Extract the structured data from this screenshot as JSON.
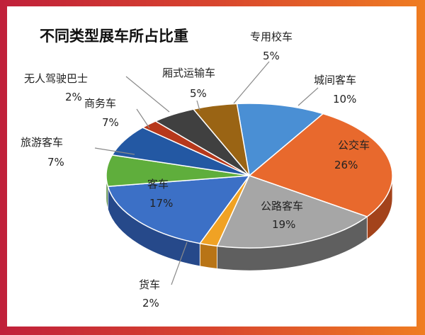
{
  "chart_data": {
    "type": "pie",
    "title": "不同类型展车所占比重",
    "slices": [
      {
        "name": "城间客车",
        "value": 10,
        "percent": "10%",
        "color": "#4a8fd4",
        "side": "#2f6aa6"
      },
      {
        "name": "公交车",
        "value": 26,
        "percent": "26%",
        "color": "#e8692d",
        "side": "#a3431b"
      },
      {
        "name": "公路客车",
        "value": 19,
        "percent": "19%",
        "color": "#a6a6a6",
        "side": "#5f5f5f"
      },
      {
        "name": "货车",
        "value": 2,
        "percent": "2%",
        "color": "#f0a224",
        "side": "#b87416"
      },
      {
        "name": "客车",
        "value": 17,
        "percent": "17%",
        "color": "#3c70c6",
        "side": "#26498a"
      },
      {
        "name": "旅游客车",
        "value": 7,
        "percent": "7%",
        "color": "#5fae3c",
        "side": "#3d7a24"
      },
      {
        "name": "商务车",
        "value": 7,
        "percent": "7%",
        "color": "#2358a3",
        "side": "#163a70"
      },
      {
        "name": "无人驾驶巴士",
        "value": 2,
        "percent": "2%",
        "color": "#b7381b",
        "side": "#7c2410"
      },
      {
        "name": "厢式运输车",
        "value": 5,
        "percent": "5%",
        "color": "#404040",
        "side": "#262626"
      },
      {
        "name": "专用校车",
        "value": 5,
        "percent": "5%",
        "color": "#9a6414",
        "side": "#66420c"
      }
    ]
  }
}
